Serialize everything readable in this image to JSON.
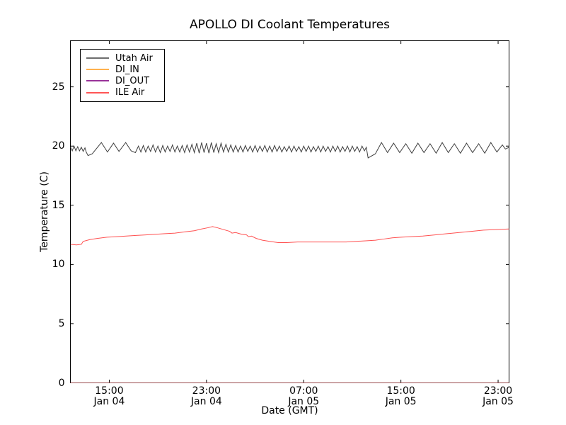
{
  "window": {
    "background": "#ffffff"
  },
  "chart_data": {
    "type": "line",
    "title": "APOLLO DI Coolant Temperatures",
    "xlabel": "Date (GMT)",
    "ylabel": "Temperature (C)",
    "grid": false,
    "x_axis_unit": "hours since Jan 04 00:00 GMT",
    "xlim": [
      11.8,
      47.9
    ],
    "ylim": [
      0,
      28.9
    ],
    "y_ticks": [
      0,
      5,
      10,
      15,
      20,
      25
    ],
    "x_ticks": [
      {
        "hour": 15,
        "time": "15:00",
        "date": "Jan 04"
      },
      {
        "hour": 23,
        "time": "23:00",
        "date": "Jan 04"
      },
      {
        "hour": 31,
        "time": "07:00",
        "date": "Jan 05"
      },
      {
        "hour": 39,
        "time": "15:00",
        "date": "Jan 05"
      },
      {
        "hour": 47,
        "time": "23:00",
        "date": "Jan 05"
      }
    ],
    "legend": {
      "position": "upper left",
      "entries": [
        {
          "label": "Utah Air",
          "color": "#6e6e6e"
        },
        {
          "label": "DI_IN",
          "color": "#ffb14d"
        },
        {
          "label": "DI_OUT",
          "color": "#993399"
        },
        {
          "label": "ILE Air",
          "color": "#ff5555"
        }
      ]
    },
    "series": [
      {
        "name": "Utah Air",
        "color": "#3f3f3f",
        "width": 1,
        "opacity": 1,
        "points": [
          [
            11.82,
            19.9
          ],
          [
            11.95,
            19.6
          ],
          [
            12.1,
            20.0
          ],
          [
            12.25,
            19.6
          ],
          [
            12.4,
            19.95
          ],
          [
            12.55,
            19.6
          ],
          [
            12.7,
            19.9
          ],
          [
            12.85,
            19.55
          ],
          [
            13.0,
            19.85
          ],
          [
            13.1,
            19.5
          ],
          [
            13.25,
            19.2
          ],
          [
            13.6,
            19.35
          ],
          [
            14.35,
            20.3
          ],
          [
            14.85,
            19.5
          ],
          [
            15.35,
            20.25
          ],
          [
            15.8,
            19.55
          ],
          [
            16.35,
            20.3
          ],
          [
            16.8,
            19.6
          ],
          [
            17.15,
            19.45
          ],
          [
            17.4,
            20.0
          ],
          [
            17.6,
            19.5
          ],
          [
            17.8,
            20.05
          ],
          [
            18.0,
            19.5
          ],
          [
            18.2,
            20.0
          ],
          [
            18.4,
            19.55
          ],
          [
            18.6,
            20.1
          ],
          [
            18.8,
            19.5
          ],
          [
            19.0,
            20.0
          ],
          [
            19.2,
            19.45
          ],
          [
            19.4,
            20.05
          ],
          [
            19.6,
            19.5
          ],
          [
            19.8,
            20.0
          ],
          [
            20.0,
            19.55
          ],
          [
            20.2,
            20.1
          ],
          [
            20.4,
            19.5
          ],
          [
            20.6,
            20.0
          ],
          [
            20.8,
            19.5
          ],
          [
            21.0,
            20.05
          ],
          [
            21.2,
            19.45
          ],
          [
            21.4,
            20.1
          ],
          [
            21.6,
            19.5
          ],
          [
            21.8,
            20.15
          ],
          [
            22.0,
            19.45
          ],
          [
            22.2,
            20.25
          ],
          [
            22.4,
            19.4
          ],
          [
            22.6,
            20.3
          ],
          [
            22.8,
            19.45
          ],
          [
            23.0,
            20.25
          ],
          [
            23.2,
            19.4
          ],
          [
            23.4,
            20.3
          ],
          [
            23.6,
            19.45
          ],
          [
            23.8,
            20.2
          ],
          [
            24.0,
            19.45
          ],
          [
            24.2,
            20.25
          ],
          [
            24.4,
            19.5
          ],
          [
            24.6,
            20.15
          ],
          [
            24.8,
            19.5
          ],
          [
            25.0,
            20.1
          ],
          [
            25.2,
            19.5
          ],
          [
            25.4,
            20.05
          ],
          [
            25.6,
            19.5
          ],
          [
            25.8,
            20.0
          ],
          [
            26.0,
            19.5
          ],
          [
            26.2,
            20.05
          ],
          [
            26.4,
            19.55
          ],
          [
            26.6,
            20.0
          ],
          [
            26.8,
            19.5
          ],
          [
            27.0,
            20.05
          ],
          [
            27.2,
            19.5
          ],
          [
            27.4,
            20.0
          ],
          [
            27.6,
            19.55
          ],
          [
            27.8,
            20.05
          ],
          [
            28.0,
            19.5
          ],
          [
            28.2,
            20.0
          ],
          [
            28.4,
            19.5
          ],
          [
            28.6,
            20.05
          ],
          [
            28.8,
            19.55
          ],
          [
            29.0,
            20.0
          ],
          [
            29.2,
            19.5
          ],
          [
            29.4,
            19.95
          ],
          [
            29.6,
            19.55
          ],
          [
            29.8,
            20.0
          ],
          [
            30.0,
            19.5
          ],
          [
            30.2,
            20.0
          ],
          [
            30.4,
            19.55
          ],
          [
            30.6,
            19.95
          ],
          [
            30.8,
            19.5
          ],
          [
            31.0,
            20.0
          ],
          [
            31.2,
            19.55
          ],
          [
            31.4,
            20.0
          ],
          [
            31.6,
            19.5
          ],
          [
            31.8,
            19.95
          ],
          [
            32.0,
            19.55
          ],
          [
            32.2,
            20.0
          ],
          [
            32.4,
            19.5
          ],
          [
            32.6,
            20.0
          ],
          [
            32.8,
            19.55
          ],
          [
            33.0,
            19.95
          ],
          [
            33.2,
            19.5
          ],
          [
            33.4,
            20.0
          ],
          [
            33.6,
            19.55
          ],
          [
            33.8,
            20.0
          ],
          [
            34.0,
            19.5
          ],
          [
            34.2,
            19.95
          ],
          [
            34.4,
            19.55
          ],
          [
            34.6,
            20.0
          ],
          [
            34.8,
            19.5
          ],
          [
            35.0,
            20.0
          ],
          [
            35.2,
            19.55
          ],
          [
            35.4,
            19.95
          ],
          [
            35.6,
            19.5
          ],
          [
            35.8,
            20.0
          ],
          [
            36.0,
            19.6
          ],
          [
            36.15,
            19.9
          ],
          [
            36.3,
            19.0
          ],
          [
            36.9,
            19.35
          ],
          [
            37.4,
            20.3
          ],
          [
            37.9,
            19.45
          ],
          [
            38.4,
            20.25
          ],
          [
            38.9,
            19.45
          ],
          [
            39.4,
            20.2
          ],
          [
            39.9,
            19.4
          ],
          [
            40.4,
            20.25
          ],
          [
            40.9,
            19.45
          ],
          [
            41.4,
            20.2
          ],
          [
            41.9,
            19.4
          ],
          [
            42.4,
            20.3
          ],
          [
            42.9,
            19.45
          ],
          [
            43.4,
            20.2
          ],
          [
            43.9,
            19.4
          ],
          [
            44.4,
            20.25
          ],
          [
            44.9,
            19.45
          ],
          [
            45.4,
            20.2
          ],
          [
            45.9,
            19.4
          ],
          [
            46.4,
            20.3
          ],
          [
            46.9,
            19.5
          ],
          [
            47.35,
            20.1
          ],
          [
            47.6,
            19.75
          ],
          [
            47.9,
            19.9
          ]
        ]
      },
      {
        "name": "DI_IN",
        "color": "#ffa500",
        "width": 1,
        "opacity": 0.6,
        "note": "flat at 0, overlaps bottom axis spine",
        "points": [
          [
            11.8,
            0
          ],
          [
            47.9,
            0
          ]
        ]
      },
      {
        "name": "DI_OUT",
        "color": "#993399",
        "width": 1,
        "opacity": 0.5,
        "note": "flat at 0, overlaps bottom axis spine",
        "points": [
          [
            11.8,
            0
          ],
          [
            47.9,
            0
          ]
        ]
      },
      {
        "name": "ILE Air",
        "color": "#ff5050",
        "width": 1,
        "opacity": 1,
        "points": [
          [
            11.82,
            11.7
          ],
          [
            12.3,
            11.65
          ],
          [
            12.7,
            11.7
          ],
          [
            12.85,
            11.95
          ],
          [
            13.4,
            12.1
          ],
          [
            14.0,
            12.2
          ],
          [
            14.8,
            12.3
          ],
          [
            15.6,
            12.35
          ],
          [
            16.4,
            12.4
          ],
          [
            17.2,
            12.45
          ],
          [
            18.0,
            12.5
          ],
          [
            18.8,
            12.55
          ],
          [
            19.6,
            12.6
          ],
          [
            20.4,
            12.65
          ],
          [
            21.2,
            12.75
          ],
          [
            22.0,
            12.85
          ],
          [
            22.6,
            13.0
          ],
          [
            23.1,
            13.1
          ],
          [
            23.5,
            13.2
          ],
          [
            23.9,
            13.1
          ],
          [
            24.4,
            12.95
          ],
          [
            24.9,
            12.8
          ],
          [
            25.1,
            12.65
          ],
          [
            25.4,
            12.7
          ],
          [
            25.9,
            12.55
          ],
          [
            26.3,
            12.5
          ],
          [
            26.45,
            12.35
          ],
          [
            26.7,
            12.4
          ],
          [
            27.1,
            12.2
          ],
          [
            27.6,
            12.05
          ],
          [
            28.2,
            11.95
          ],
          [
            28.9,
            11.85
          ],
          [
            29.6,
            11.85
          ],
          [
            30.5,
            11.9
          ],
          [
            31.5,
            11.9
          ],
          [
            32.5,
            11.9
          ],
          [
            33.5,
            11.9
          ],
          [
            34.5,
            11.9
          ],
          [
            35.3,
            11.95
          ],
          [
            36.1,
            12.0
          ],
          [
            36.9,
            12.05
          ],
          [
            37.6,
            12.15
          ],
          [
            38.3,
            12.25
          ],
          [
            39.0,
            12.3
          ],
          [
            39.8,
            12.35
          ],
          [
            40.8,
            12.4
          ],
          [
            41.8,
            12.5
          ],
          [
            42.8,
            12.6
          ],
          [
            43.8,
            12.7
          ],
          [
            44.8,
            12.8
          ],
          [
            45.8,
            12.9
          ],
          [
            46.8,
            12.95
          ],
          [
            47.9,
            13.0
          ]
        ]
      }
    ]
  }
}
